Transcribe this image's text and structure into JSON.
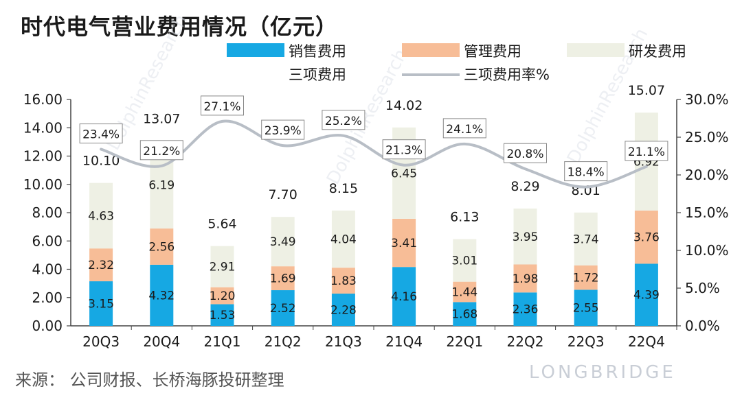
{
  "title": "时代电气营业费用情况（亿元）",
  "source": "来源：  公司财报、长桥海豚投研整理",
  "watermark": "LONGBRIDGE",
  "watermark_diag": "DolphinResearch",
  "colors": {
    "sales": "#16A8E3",
    "admin": "#F7BD97",
    "rd": "#EEF0E4",
    "rate_line": "#B8BEC6",
    "axis": "#444444"
  },
  "chart_data": {
    "type": "bar",
    "stacked": true,
    "title": "时代电气营业费用情况（亿元）",
    "categories": [
      "20Q3",
      "20Q4",
      "21Q1",
      "21Q2",
      "21Q3",
      "21Q4",
      "22Q1",
      "22Q2",
      "22Q3",
      "22Q4"
    ],
    "series": [
      {
        "name": "销售费用",
        "values": [
          3.15,
          4.32,
          1.53,
          2.52,
          2.28,
          4.16,
          1.68,
          2.36,
          2.55,
          4.39
        ]
      },
      {
        "name": "管理费用",
        "values": [
          2.32,
          2.56,
          1.2,
          1.69,
          1.83,
          3.41,
          1.44,
          1.98,
          1.72,
          3.76
        ]
      },
      {
        "name": "研发费用",
        "values": [
          4.63,
          6.19,
          2.91,
          3.49,
          4.04,
          6.45,
          3.01,
          3.95,
          3.74,
          6.92
        ]
      }
    ],
    "totals": {
      "name": "三项费用",
      "values": [
        "10.10",
        "13.07",
        "5.64",
        "7.70",
        "8.15",
        "14.02",
        "6.13",
        "8.29",
        "8.01",
        "15.07"
      ]
    },
    "rate": {
      "name": "三项费用率%",
      "type": "line",
      "axis": "right",
      "values": [
        23.4,
        21.2,
        27.1,
        23.9,
        25.2,
        21.3,
        24.1,
        20.8,
        18.4,
        21.1
      ],
      "labels": [
        "23.4%",
        "21.2%",
        "27.1%",
        "23.9%",
        "25.2%",
        "21.3%",
        "24.1%",
        "20.8%",
        "18.4%",
        "21.1%"
      ]
    },
    "value_labels": {
      "sales": [
        "3.15",
        "4.32",
        "1.53",
        "2.52",
        "2.28",
        "4.16",
        "1.68",
        "2.36",
        "2.55",
        "4.39"
      ],
      "admin": [
        "2.32",
        "2.56",
        "1.20",
        "1.69",
        "1.83",
        "3.41",
        "1.44",
        "1.98",
        "1.72",
        "3.76"
      ],
      "rd": [
        "4.63",
        "6.19",
        "2.91",
        "3.49",
        "4.04",
        "6.45",
        "3.01",
        "3.95",
        "3.74",
        "6.92"
      ]
    },
    "ylim": [
      0,
      16
    ],
    "y2lim": [
      0,
      30
    ],
    "yticks": [
      "0.00",
      "2.00",
      "4.00",
      "6.00",
      "8.00",
      "10.00",
      "12.00",
      "14.00",
      "16.00"
    ],
    "y2ticks": [
      "0.0%",
      "5.0%",
      "10.0%",
      "15.0%",
      "20.0%",
      "25.0%",
      "30.0%"
    ],
    "legend_position": "top-right",
    "legend": [
      "销售费用",
      "管理费用",
      "研发费用",
      "三项费用",
      "三项费用率%"
    ]
  }
}
